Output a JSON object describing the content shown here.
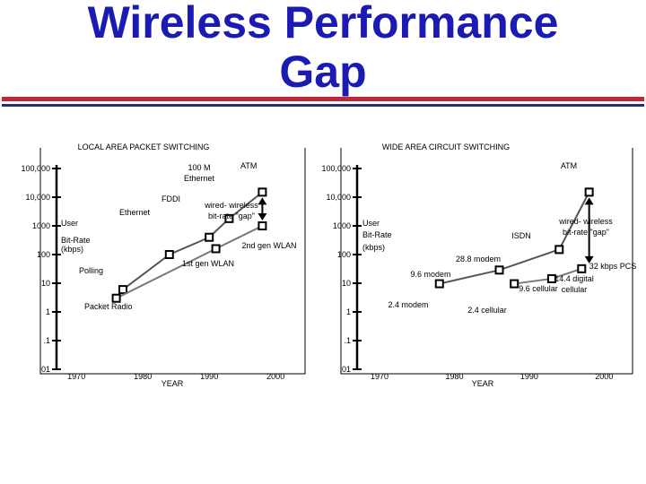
{
  "title": {
    "line1": "Wireless Performance",
    "line2": "Gap"
  },
  "colors": {
    "title": "#1b1bb3",
    "rule_red": "#c0283a",
    "rule_blue": "#27306b",
    "ink": "#000000"
  },
  "chart_data": [
    {
      "type": "line",
      "title": "LOCAL AREA PACKET SWITCHING",
      "xlabel": "YEAR",
      "ylabel": "User Bit-Rate (kbps)",
      "yscale": "log",
      "ylim": [
        0.01,
        100000
      ],
      "xlim": [
        1967,
        2002
      ],
      "yticks": [
        "100,000",
        "10,000",
        "1000",
        "100",
        "10",
        "1",
        ".1",
        ".01"
      ],
      "xticks": [
        "1970",
        "1980",
        "1990",
        "2000"
      ],
      "series": [
        {
          "values": [
            [
              1977,
              6
            ],
            [
              1984,
              100
            ],
            [
              1990,
              400
            ],
            [
              1993,
              1800
            ],
            [
              1998,
              15000
            ]
          ],
          "point_labels": [
            "Polling",
            "Ethernet",
            "FDDI",
            "100 M Ethernet",
            "ATM"
          ]
        },
        {
          "values": [
            [
              1976,
              3
            ],
            [
              1991,
              160
            ],
            [
              1998,
              1000
            ]
          ],
          "point_labels": [
            "Packet Radio",
            "1st gen WLAN",
            "2nd gen WLAN"
          ]
        }
      ],
      "gap": {
        "x": 1998,
        "from": 1000,
        "to": 15000,
        "label": "wired- wireless bit-rate \"gap\""
      }
    },
    {
      "type": "line",
      "title": "WIDE AREA CIRCUIT SWITCHING",
      "xlabel": "YEAR",
      "ylabel": "User Bit-Rate (kbps)",
      "yscale": "log",
      "ylim": [
        0.01,
        100000
      ],
      "xlim": [
        1967,
        2002
      ],
      "yticks": [
        "100,000",
        "10,000",
        "1000",
        "100",
        "10",
        "1",
        ".1",
        ".01"
      ],
      "xticks": [
        "1970",
        "1980",
        "1990",
        "2000"
      ],
      "series": [
        {
          "values": [
            [
              1978,
              9.6
            ],
            [
              1986,
              28.8
            ],
            [
              1994,
              150
            ],
            [
              1998,
              15000
            ]
          ],
          "point_labels": [
            "9.6 modem",
            "28.8 modem",
            "ISDN",
            "ATM"
          ]
        },
        {
          "values": [
            [
              1988,
              9.6
            ],
            [
              1993,
              14.4
            ],
            [
              1997,
              32
            ]
          ],
          "point_labels": [
            "9.6 cellular",
            "14.4 digital cellular",
            "32 kbps PCS"
          ]
        }
      ],
      "annotations": [
        "2.4 modem",
        "2.4 cellular"
      ],
      "gap": {
        "x": 1998,
        "from": 32,
        "to": 15000,
        "label": "wired- wireless bit-rate \"gap\""
      }
    }
  ]
}
